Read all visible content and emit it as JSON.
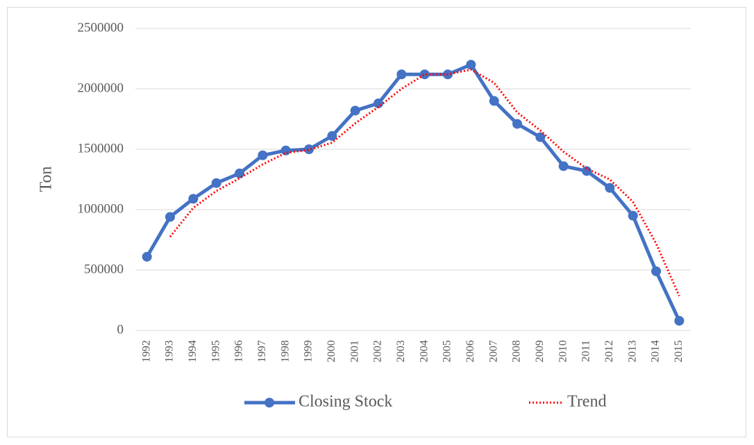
{
  "chart_data": {
    "type": "line",
    "ylabel": "Ton",
    "categories": [
      "1992",
      "1993",
      "1994",
      "1995",
      "1996",
      "1997",
      "1998",
      "1999",
      "2000",
      "2001",
      "2002",
      "2003",
      "2004",
      "2005",
      "2006",
      "2007",
      "2008",
      "2009",
      "2010",
      "2011",
      "2012",
      "2013",
      "2014",
      "2015"
    ],
    "series": [
      {
        "name": "Closing Stock",
        "color": "#4472c4",
        "values": [
          610000,
          940000,
          1090000,
          1220000,
          1300000,
          1450000,
          1490000,
          1500000,
          1610000,
          1820000,
          1880000,
          2120000,
          2120000,
          2120000,
          2200000,
          1900000,
          1710000,
          1600000,
          1360000,
          1320000,
          1180000,
          950000,
          490000,
          80000
        ]
      },
      {
        "name": "Trend",
        "color": "#ff0000",
        "values": [
          null,
          775000,
          1015000,
          1155000,
          1260000,
          1375000,
          1470000,
          1495000,
          1555000,
          1715000,
          1850000,
          2000000,
          2120000,
          2120000,
          2160000,
          2050000,
          1805000,
          1655000,
          1480000,
          1340000,
          1250000,
          1065000,
          720000,
          285000
        ]
      }
    ],
    "ylim": [
      0,
      2500000
    ],
    "yticks": [
      0,
      500000,
      1000000,
      1500000,
      2000000,
      2500000
    ],
    "grid": true,
    "legend": "bottom"
  }
}
